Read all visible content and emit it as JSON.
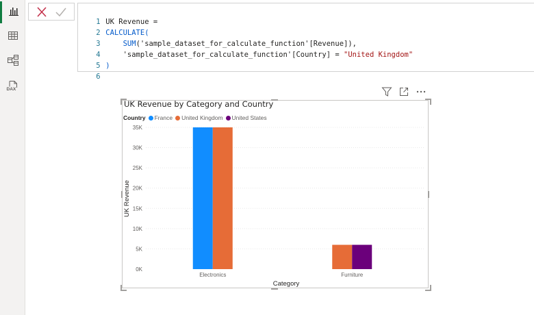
{
  "rail": {
    "items": [
      {
        "name": "report-view",
        "icon": "bar-chart-icon",
        "active": true
      },
      {
        "name": "table-view",
        "icon": "table-grid-icon",
        "active": false
      },
      {
        "name": "model-view",
        "icon": "model-diagram-icon",
        "active": false
      },
      {
        "name": "dax-query-view",
        "icon": "dax-icon",
        "active": false,
        "label": "DAX"
      }
    ]
  },
  "formula_bar": {
    "cancel_icon": "close-icon",
    "commit_icon": "checkmark-icon",
    "lines": [
      {
        "num": "1",
        "text": "UK Revenue ="
      },
      {
        "num": "2",
        "text": "CALCULATE("
      },
      {
        "num": "3",
        "text": "    SUM('sample_dataset_for_calculate_function'[Revenue]),"
      },
      {
        "num": "4",
        "text": "    'sample_dataset_for_calculate_function'[Country] = \"United Kingdom\""
      },
      {
        "num": "5",
        "text": ")"
      },
      {
        "num": "6",
        "text": ""
      }
    ]
  },
  "visual_header": {
    "icons": [
      "filter-icon",
      "focus-mode-icon",
      "more-options-icon"
    ]
  },
  "colors": {
    "france": "#118dff",
    "united_kingdom": "#e66c37",
    "united_states": "#6b007b",
    "grid": "#e8e8e8",
    "axis_text": "#605e5c",
    "rail_active": "#107c41"
  },
  "chart_data": {
    "type": "bar",
    "title": "UK Revenue by Category and Country",
    "legend_title": "Country",
    "legend_position": "top-left",
    "xlabel": "Category",
    "ylabel": "UK Revenue",
    "categories": [
      "Electronics",
      "Furniture"
    ],
    "series": [
      {
        "name": "France",
        "values": [
          35000,
          null
        ]
      },
      {
        "name": "United Kingdom",
        "values": [
          35000,
          6000
        ]
      },
      {
        "name": "United States",
        "values": [
          null,
          6000
        ]
      }
    ],
    "ylim": [
      0,
      35000
    ],
    "yticks": [
      {
        "value": 0,
        "label": "0K"
      },
      {
        "value": 5000,
        "label": "5K"
      },
      {
        "value": 10000,
        "label": "10K"
      },
      {
        "value": 15000,
        "label": "15K"
      },
      {
        "value": 20000,
        "label": "20K"
      },
      {
        "value": 25000,
        "label": "25K"
      },
      {
        "value": 30000,
        "label": "30K"
      },
      {
        "value": 35000,
        "label": "35K"
      }
    ],
    "grid": true
  }
}
